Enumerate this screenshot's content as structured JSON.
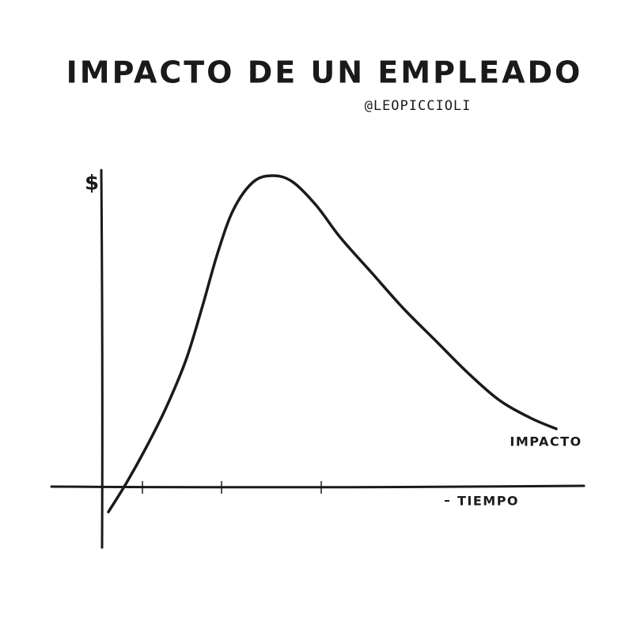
{
  "chart_data": {
    "type": "line",
    "title": "IMPACTO DE UN EMPLEADO",
    "subtitle": "@LEOPICCIOLI",
    "y_label": "$",
    "x_label": "TIEMPO",
    "x": [
      0.08,
      0.31,
      0.56,
      0.81,
      1.06,
      1.26,
      1.46,
      1.66,
      1.91,
      2.16,
      2.41,
      2.71,
      3.01,
      3.41,
      3.81,
      4.21,
      4.61,
      5.01,
      5.41,
      5.74
    ],
    "series": [
      {
        "name": "IMPACTO",
        "color": "#1a1a1a",
        "values": [
          -0.32,
          0.05,
          0.5,
          1.0,
          1.6,
          2.25,
          2.95,
          3.5,
          3.85,
          3.93,
          3.85,
          3.55,
          3.15,
          2.7,
          2.25,
          1.85,
          1.45,
          1.1,
          0.87,
          0.73
        ]
      }
    ],
    "xlim": [
      -0.64,
      6.09
    ],
    "ylim": [
      -0.77,
      4.0
    ],
    "xticks": [
      0.51,
      1.51,
      2.77
    ]
  }
}
